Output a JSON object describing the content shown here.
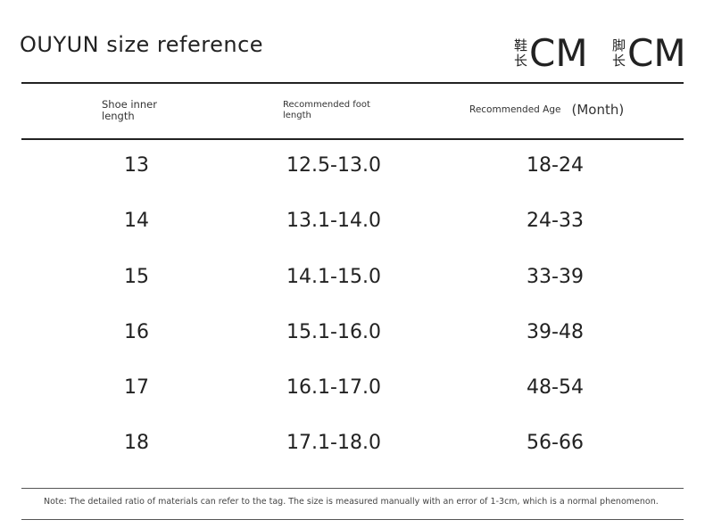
{
  "title": "OUYUN size reference",
  "units": [
    {
      "cjk_top": "鞋",
      "cjk_bottom": "长",
      "unit": "CM"
    },
    {
      "cjk_top": "脚",
      "cjk_bottom": "长",
      "unit": "CM"
    }
  ],
  "headers": {
    "col1_line1": "Shoe inner",
    "col1_line2": "length",
    "col2_line1": "Recommended foot",
    "col2_line2": "length",
    "col3": "Recommended Age",
    "col3_sub": "(Month)"
  },
  "rows": [
    {
      "shoe": "13",
      "foot": "12.5-13.0",
      "age": "18-24"
    },
    {
      "shoe": "14",
      "foot": "13.1-14.0",
      "age": "24-33"
    },
    {
      "shoe": "15",
      "foot": "14.1-15.0",
      "age": "33-39"
    },
    {
      "shoe": "16",
      "foot": "15.1-16.0",
      "age": "39-48"
    },
    {
      "shoe": "17",
      "foot": "16.1-17.0",
      "age": "48-54"
    },
    {
      "shoe": "18",
      "foot": "17.1-18.0",
      "age": "56-66"
    }
  ],
  "note": "Note: The detailed ratio of materials can refer to the tag. The size is measured manually with an error of 1-3cm, which is a normal phenomenon."
}
